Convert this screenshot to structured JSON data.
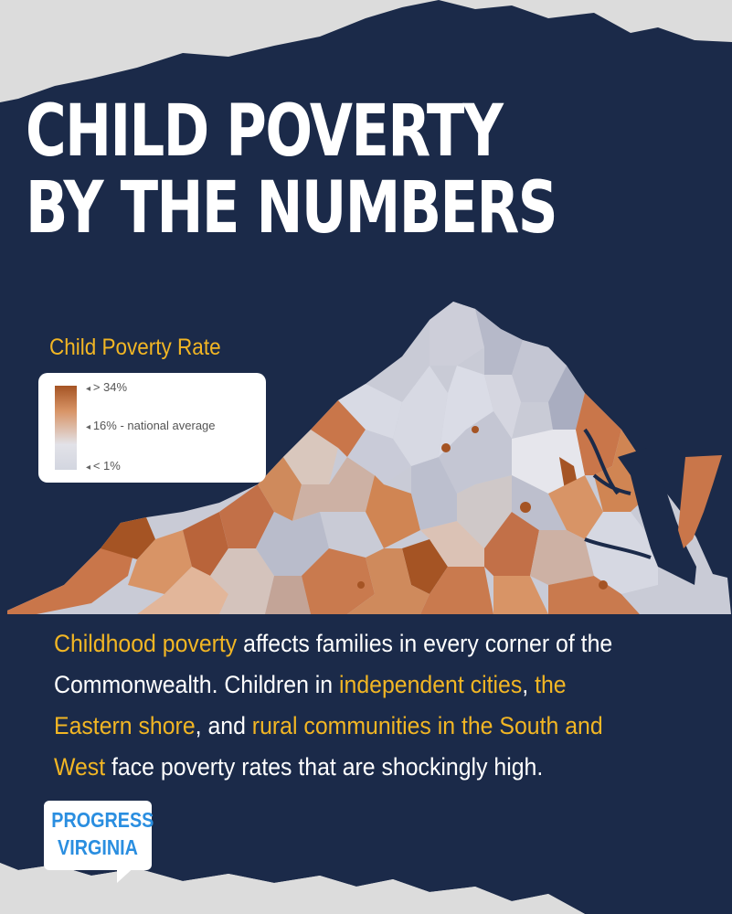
{
  "poster": {
    "title_lines": [
      "CHILD POVERTY",
      "BY THE NUMBERS"
    ]
  },
  "map": {
    "legend": {
      "title": "Child Poverty Rate",
      "high_label": "> 34%",
      "mid_label": "16% - national average",
      "low_label": "< 1%"
    },
    "colors": {
      "high": "#a55424",
      "mid_high": "#d08553",
      "mid": "#e3b59a",
      "low": "#d3d6e0",
      "water": "#1b2b4a"
    }
  },
  "body": {
    "segments": [
      {
        "text": "Childhood poverty",
        "highlight": true
      },
      {
        "text": " affects families in every corner of the Commonwealth. Children in ",
        "highlight": false
      },
      {
        "text": "independent cities",
        "highlight": true
      },
      {
        "text": ", ",
        "highlight": false
      },
      {
        "text": "the Eastern shore",
        "highlight": true
      },
      {
        "text": ", and ",
        "highlight": false
      },
      {
        "text": "rural communities in the South and West",
        "highlight": true
      },
      {
        "text": " face poverty rates that are shockingly high.",
        "highlight": false
      }
    ]
  },
  "logo": {
    "line1": "PROGRESS",
    "line2": "VIRGINIA"
  },
  "theme": {
    "navy": "#1b2a49",
    "paper": "#d9d9d9",
    "accent": "#f2b624",
    "logo_blue": "#2a8ee0"
  }
}
